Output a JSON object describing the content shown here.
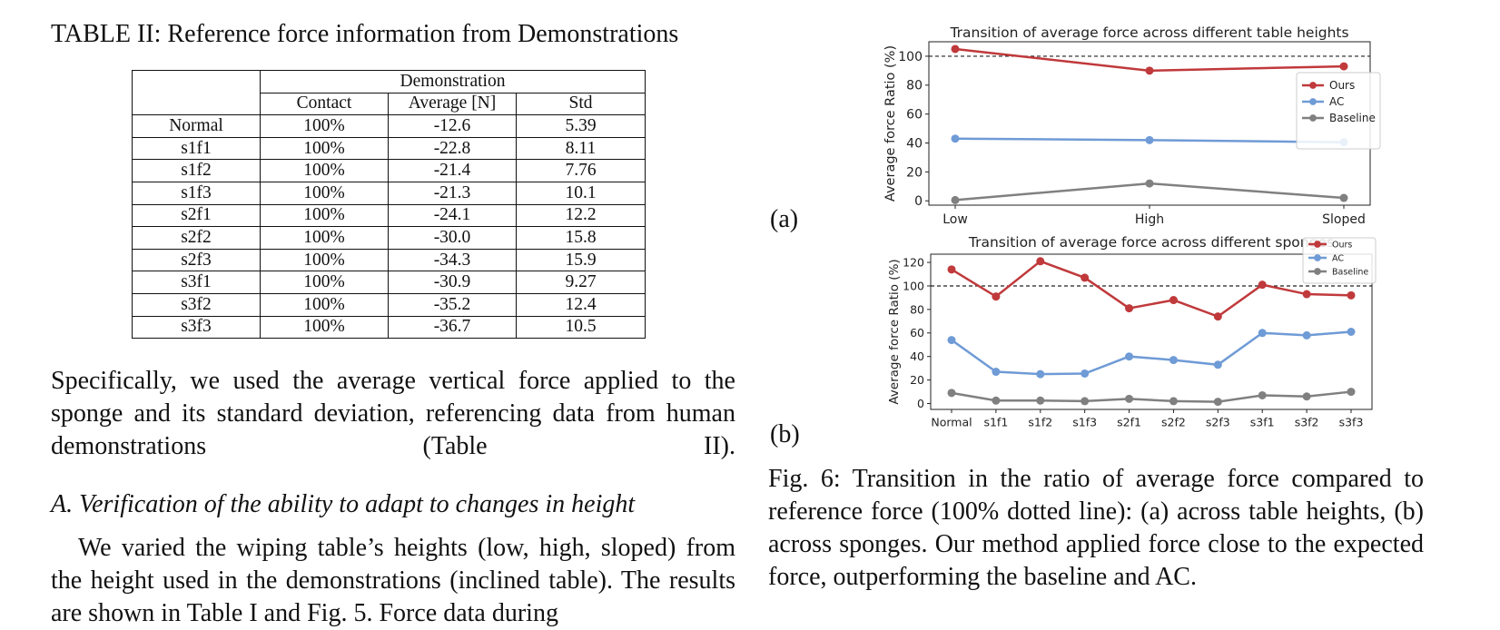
{
  "table": {
    "caption": "TABLE II: Reference force information from Demonstrations",
    "group_header": "Demonstration",
    "columns": [
      "Contact",
      "Average [N]",
      "Std"
    ],
    "rows": [
      {
        "name": "Normal",
        "contact": "100%",
        "average": "-12.6",
        "std": "5.39"
      },
      {
        "name": "s1f1",
        "contact": "100%",
        "average": "-22.8",
        "std": "8.11"
      },
      {
        "name": "s1f2",
        "contact": "100%",
        "average": "-21.4",
        "std": "7.76"
      },
      {
        "name": "s1f3",
        "contact": "100%",
        "average": "-21.3",
        "std": "10.1"
      },
      {
        "name": "s2f1",
        "contact": "100%",
        "average": "-24.1",
        "std": "12.2"
      },
      {
        "name": "s2f2",
        "contact": "100%",
        "average": "-30.0",
        "std": "15.8"
      },
      {
        "name": "s2f3",
        "contact": "100%",
        "average": "-34.3",
        "std": "15.9"
      },
      {
        "name": "s3f1",
        "contact": "100%",
        "average": "-30.9",
        "std": "9.27"
      },
      {
        "name": "s3f2",
        "contact": "100%",
        "average": "-35.2",
        "std": "12.4"
      },
      {
        "name": "s3f3",
        "contact": "100%",
        "average": "-36.7",
        "std": "10.5"
      }
    ]
  },
  "text": {
    "para1": "Specifically, we used the average vertical force applied to the sponge and its standard deviation, referencing data from human demonstrations (Table II).",
    "section_heading": "A. Verification of the ability to adapt to changes in height",
    "para2": "We varied the wiping table’s heights (low, high, sloped) from the height used in the demonstrations (inclined table). The results are shown in Table I and Fig. 5. Force data during",
    "fig_caption": "Fig. 6: Transition in the ratio of average force compared to reference force (100% dotted line): (a) across table heights, (b) across sponges. Our method applied force close to the expected force, outperforming the baseline and AC.",
    "label_a": "(a)",
    "label_b": "(b)"
  },
  "chart_data": [
    {
      "type": "line",
      "title": "Transition of average force across different table heights",
      "ylabel": "Average force Ratio (%)",
      "xlabel": "",
      "categories": [
        "Low",
        "High",
        "Sloped"
      ],
      "ylim": [
        -3,
        110
      ],
      "yticks": [
        0,
        20,
        40,
        60,
        80,
        100
      ],
      "reference_line": 100,
      "legend": "right",
      "series": [
        {
          "name": "Ours",
          "color": "#c0393b",
          "values": [
            105,
            90,
            93
          ]
        },
        {
          "name": "AC",
          "color": "#6f9bd6",
          "values": [
            43,
            42,
            40.5
          ]
        },
        {
          "name": "Baseline",
          "color": "#808080",
          "values": [
            0.5,
            12,
            2
          ]
        }
      ]
    },
    {
      "type": "line",
      "title": "Transition of average force across different sponges",
      "ylabel": "Average force Ratio (%)",
      "xlabel": "",
      "categories": [
        "Normal",
        "s1f1",
        "s1f2",
        "s1f3",
        "s2f1",
        "s2f2",
        "s2f3",
        "s3f1",
        "s3f2",
        "s3f3"
      ],
      "ylim": [
        -5,
        127
      ],
      "yticks": [
        0,
        20,
        40,
        60,
        80,
        100,
        120
      ],
      "reference_line": 100,
      "legend": "top-right",
      "series": [
        {
          "name": "Ours",
          "color": "#c0393b",
          "values": [
            114,
            91,
            121,
            107,
            81,
            88,
            74,
            101,
            93,
            92
          ]
        },
        {
          "name": "AC",
          "color": "#6f9bd6",
          "values": [
            54,
            27,
            25,
            25.5,
            40,
            37,
            33,
            60,
            58,
            61
          ]
        },
        {
          "name": "Baseline",
          "color": "#808080",
          "values": [
            9,
            2.5,
            2.5,
            2,
            4,
            2,
            1.5,
            7,
            6,
            10
          ]
        }
      ]
    }
  ]
}
